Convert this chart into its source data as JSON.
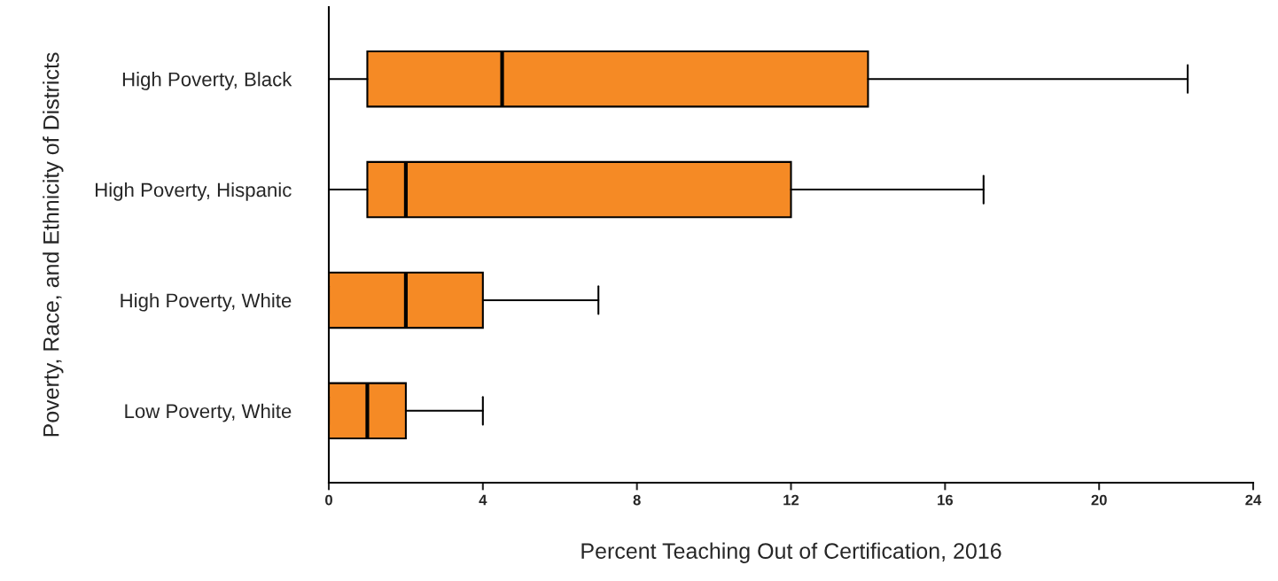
{
  "chart_data": {
    "type": "box",
    "orientation": "horizontal",
    "xlabel": "Percent Teaching Out of Certification, 2016",
    "ylabel": "Poverty, Race, and Ethnicity of Districts",
    "categories": [
      "High Poverty, Black",
      "High Poverty, Hispanic",
      "High Poverty, White",
      "Low Poverty, White"
    ],
    "series": [
      {
        "color": "#f58a25",
        "boxes": [
          {
            "low": 0,
            "q1": 1,
            "median": 4.5,
            "q3": 14,
            "high": 22.3
          },
          {
            "low": 0,
            "q1": 1,
            "median": 2,
            "q3": 12,
            "high": 17
          },
          {
            "low": 0,
            "q1": 0,
            "median": 2,
            "q3": 4,
            "high": 7
          },
          {
            "low": 0,
            "q1": 0,
            "median": 1,
            "q3": 2,
            "high": 4
          }
        ]
      }
    ],
    "xlim": [
      0,
      24
    ],
    "xticks": [
      0,
      4,
      8,
      12,
      16,
      20,
      24
    ],
    "grid": false,
    "legend": false
  }
}
